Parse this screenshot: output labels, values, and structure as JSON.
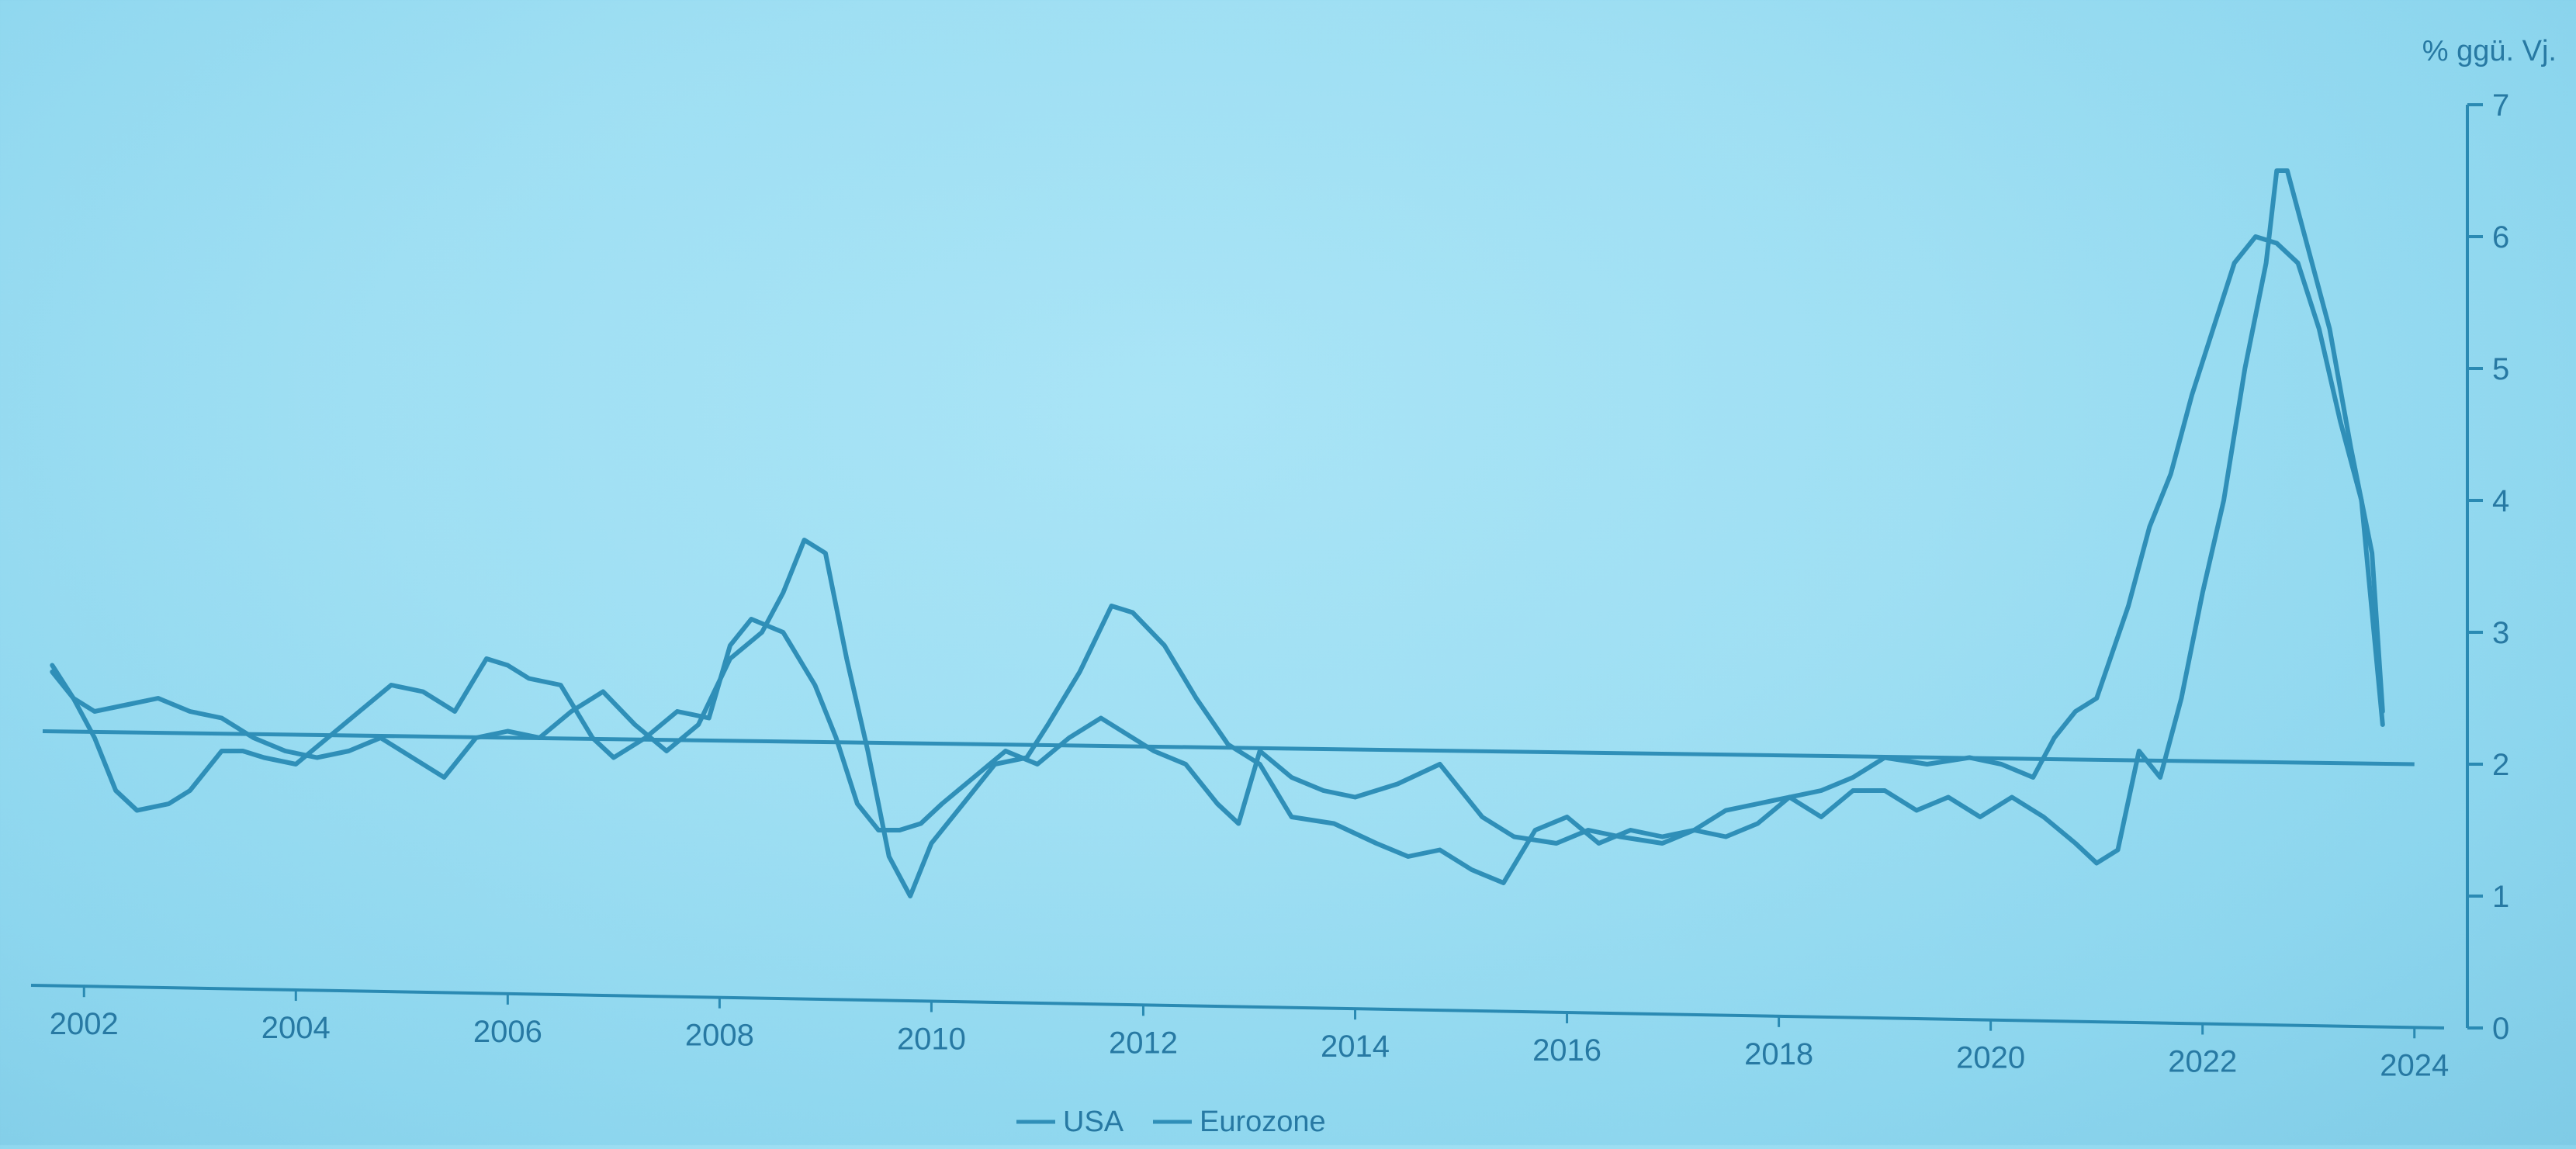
{
  "chart_data": {
    "type": "line",
    "unit_label": "% ggü. Vj.",
    "x_ticks": [
      "2002",
      "2004",
      "2006",
      "2008",
      "2010",
      "2012",
      "2014",
      "2016",
      "2018",
      "2020",
      "2022",
      "2024"
    ],
    "y_ticks": [
      "0",
      "1",
      "2",
      "3",
      "4",
      "5",
      "6",
      "7"
    ],
    "xlim": [
      2001.5,
      2024.5
    ],
    "ylim": [
      0,
      7
    ],
    "reference_line_label": "",
    "grid": false,
    "legend_position": "bottom-center",
    "colors": {
      "line": "#2f8fb8",
      "axis": "#2a8ab3",
      "text": "#2779a3"
    },
    "reference_line": {
      "x": [
        2001.5,
        2024.0
      ],
      "y": [
        2.25,
        2.0
      ]
    },
    "series": [
      {
        "name": "USA",
        "x": [
          2001.7,
          2001.9,
          2002.1,
          2002.3,
          2002.5,
          2002.8,
          2003.0,
          2003.3,
          2003.5,
          2003.7,
          2004.0,
          2004.3,
          2004.6,
          2004.9,
          2005.2,
          2005.5,
          2005.8,
          2006.0,
          2006.2,
          2006.5,
          2006.8,
          2007.0,
          2007.3,
          2007.6,
          2007.9,
          2008.1,
          2008.3,
          2008.6,
          2008.9,
          2009.1,
          2009.3,
          2009.5,
          2009.7,
          2009.9,
          2010.1,
          2010.4,
          2010.7,
          2011.0,
          2011.3,
          2011.6,
          2011.9,
          2012.1,
          2012.4,
          2012.7,
          2012.9,
          2013.1,
          2013.4,
          2013.7,
          2014.0,
          2014.4,
          2014.8,
          2015.2,
          2015.5,
          2015.9,
          2016.2,
          2016.5,
          2016.9,
          2017.2,
          2017.5,
          2017.8,
          2018.1,
          2018.4,
          2018.7,
          2019.0,
          2019.4,
          2019.8,
          2020.1,
          2020.4,
          2020.6,
          2020.8,
          2021.0,
          2021.3,
          2021.5,
          2021.7,
          2021.9,
          2022.1,
          2022.3,
          2022.5,
          2022.7,
          2022.9,
          2023.1,
          2023.3,
          2023.5,
          2023.7
        ],
        "values": [
          2.75,
          2.5,
          2.2,
          1.8,
          1.65,
          1.7,
          1.8,
          2.1,
          2.1,
          2.05,
          2.0,
          2.2,
          2.4,
          2.6,
          2.55,
          2.4,
          2.8,
          2.75,
          2.65,
          2.6,
          2.2,
          2.05,
          2.2,
          2.4,
          2.35,
          2.9,
          3.1,
          3.0,
          2.6,
          2.2,
          1.7,
          1.5,
          1.5,
          1.55,
          1.7,
          1.9,
          2.1,
          2.0,
          2.2,
          2.35,
          2.2,
          2.1,
          2.0,
          1.7,
          1.55,
          2.1,
          1.9,
          1.8,
          1.75,
          1.85,
          2.0,
          1.6,
          1.45,
          1.4,
          1.5,
          1.45,
          1.4,
          1.5,
          1.65,
          1.7,
          1.75,
          1.8,
          1.9,
          2.05,
          2.0,
          2.05,
          2.0,
          1.9,
          2.2,
          2.4,
          2.5,
          3.2,
          3.8,
          4.2,
          4.8,
          5.3,
          5.8,
          6.0,
          5.95,
          5.8,
          5.3,
          4.6,
          4.0,
          2.3
        ]
      },
      {
        "name": "Eurozone",
        "x": [
          2001.7,
          2001.9,
          2002.1,
          2002.4,
          2002.7,
          2003.0,
          2003.3,
          2003.6,
          2003.9,
          2004.2,
          2004.5,
          2004.8,
          2005.1,
          2005.4,
          2005.7,
          2006.0,
          2006.3,
          2006.6,
          2006.9,
          2007.2,
          2007.5,
          2007.8,
          2008.1,
          2008.4,
          2008.6,
          2008.8,
          2009.0,
          2009.2,
          2009.4,
          2009.6,
          2009.8,
          2010.0,
          2010.3,
          2010.6,
          2010.9,
          2011.1,
          2011.4,
          2011.7,
          2011.9,
          2012.2,
          2012.5,
          2012.8,
          2013.1,
          2013.4,
          2013.8,
          2014.2,
          2014.5,
          2014.8,
          2015.1,
          2015.4,
          2015.7,
          2016.0,
          2016.3,
          2016.6,
          2016.9,
          2017.2,
          2017.5,
          2017.8,
          2018.1,
          2018.4,
          2018.7,
          2019.0,
          2019.3,
          2019.6,
          2019.9,
          2020.2,
          2020.5,
          2020.8,
          2021.0,
          2021.2,
          2021.4,
          2021.6,
          2021.8,
          2022.0,
          2022.2,
          2022.4,
          2022.6,
          2022.7,
          2022.8,
          2023.0,
          2023.2,
          2023.4,
          2023.6,
          2023.7
        ],
        "values": [
          2.7,
          2.5,
          2.4,
          2.45,
          2.5,
          2.4,
          2.35,
          2.2,
          2.1,
          2.05,
          2.1,
          2.2,
          2.05,
          1.9,
          2.2,
          2.25,
          2.2,
          2.4,
          2.55,
          2.3,
          2.1,
          2.3,
          2.8,
          3.0,
          3.3,
          3.7,
          3.6,
          2.8,
          2.1,
          1.3,
          1.0,
          1.4,
          1.7,
          2.0,
          2.05,
          2.3,
          2.7,
          3.2,
          3.15,
          2.9,
          2.5,
          2.15,
          2.0,
          1.6,
          1.55,
          1.4,
          1.3,
          1.35,
          1.2,
          1.1,
          1.5,
          1.6,
          1.4,
          1.5,
          1.45,
          1.5,
          1.45,
          1.55,
          1.75,
          1.6,
          1.8,
          1.8,
          1.65,
          1.75,
          1.6,
          1.75,
          1.6,
          1.4,
          1.25,
          1.35,
          2.1,
          1.9,
          2.5,
          3.3,
          4.0,
          5.0,
          5.8,
          6.5,
          6.5,
          5.9,
          5.3,
          4.4,
          3.6,
          2.4
        ]
      }
    ]
  }
}
